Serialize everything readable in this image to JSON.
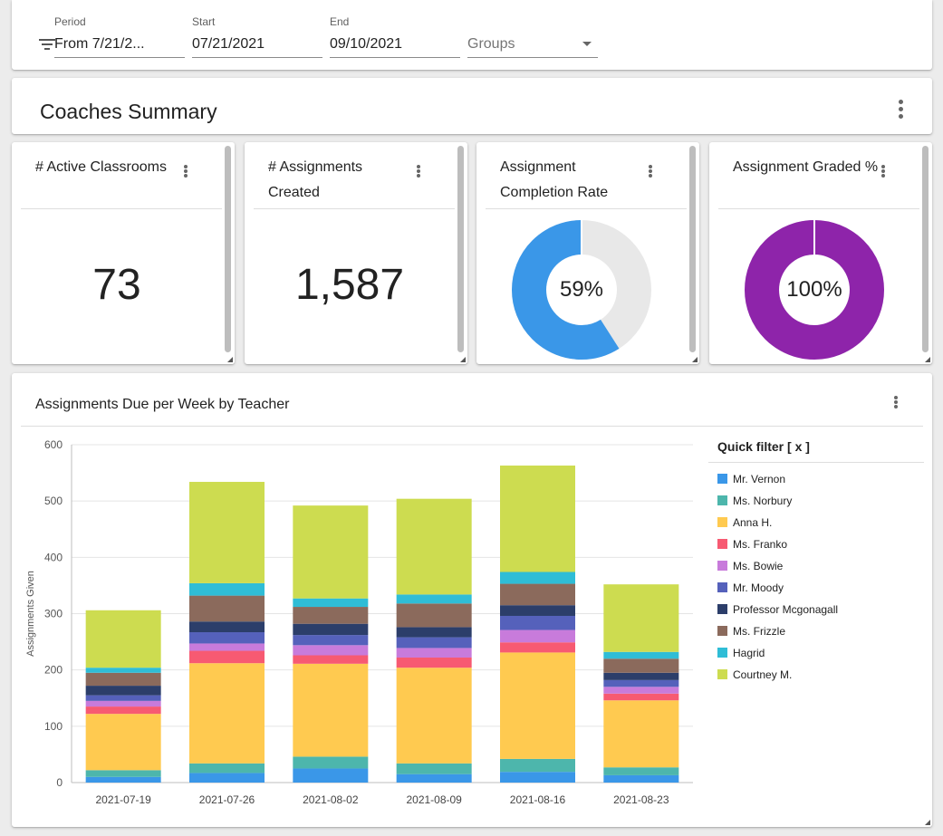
{
  "filters": {
    "period": {
      "label": "Period",
      "value": "From 7/21/2..."
    },
    "start": {
      "label": "Start",
      "value": "07/21/2021"
    },
    "end": {
      "label": "End",
      "value": "09/10/2021"
    },
    "groups": {
      "placeholder": "Groups"
    }
  },
  "summary": {
    "title": "Coaches Summary"
  },
  "kpis": [
    {
      "title": "# Active Classrooms",
      "value": "73"
    },
    {
      "title": "# Assignments Created",
      "value": "1,587"
    },
    {
      "title": "Assignment Completion Rate",
      "value": "59%",
      "fraction": 0.59,
      "color": "#3a97e8",
      "track_color": "#e8e8e8"
    },
    {
      "title": "Assignment Graded %",
      "value": "100%",
      "fraction": 1.0,
      "color": "#8e24aa",
      "track_color": "#e8e8e8"
    }
  ],
  "chart_card": {
    "title": "Assignments Due per Week by Teacher"
  },
  "legend": {
    "title": "Quick filter [ x ]"
  },
  "chart_data": {
    "type": "bar",
    "stacked": true,
    "ylabel": "Assignments Given",
    "xlabel": "",
    "ylim": [
      0,
      600
    ],
    "yticks": [
      0,
      100,
      200,
      300,
      400,
      500,
      600
    ],
    "grid": true,
    "legend_position": "right",
    "categories": [
      "2021-07-19",
      "2021-07-26",
      "2021-08-02",
      "2021-08-09",
      "2021-08-16",
      "2021-08-23"
    ],
    "series": [
      {
        "name": "Mr. Vernon",
        "color": "#3a97e8",
        "values": [
          10,
          17,
          25,
          15,
          19,
          13
        ]
      },
      {
        "name": "Ms. Norbury",
        "color": "#4db6ac",
        "values": [
          12,
          17,
          21,
          19,
          23,
          14
        ]
      },
      {
        "name": "Anna H.",
        "color": "#ffca50",
        "values": [
          100,
          178,
          165,
          170,
          189,
          119
        ]
      },
      {
        "name": "Ms. Franko",
        "color": "#f75a72",
        "values": [
          13,
          22,
          15,
          18,
          18,
          12
        ]
      },
      {
        "name": "Ms. Bowie",
        "color": "#c87bdb",
        "values": [
          10,
          13,
          18,
          17,
          22,
          12
        ]
      },
      {
        "name": "Mr. Moody",
        "color": "#5561bb",
        "values": [
          10,
          20,
          18,
          19,
          25,
          12
        ]
      },
      {
        "name": "Professor Mcgonagall",
        "color": "#2c3e6a",
        "values": [
          17,
          19,
          20,
          18,
          19,
          13
        ]
      },
      {
        "name": "Ms. Frizzle",
        "color": "#8b6a5c",
        "values": [
          23,
          46,
          30,
          42,
          38,
          25
        ]
      },
      {
        "name": "Hagrid",
        "color": "#2fbdd6",
        "values": [
          9,
          22,
          15,
          16,
          21,
          12
        ]
      },
      {
        "name": "Courtney M.",
        "color": "#cddc50",
        "values": [
          102,
          180,
          165,
          170,
          189,
          120
        ]
      }
    ]
  }
}
